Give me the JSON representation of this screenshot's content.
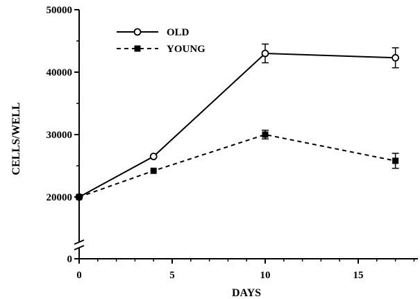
{
  "chart_data": {
    "type": "line",
    "xlabel": "DAYS",
    "ylabel": "CELLS/WELL",
    "xlim": [
      0,
      18
    ],
    "y_axis_break": true,
    "y_ticks": [
      {
        "value": 0,
        "label": "0"
      },
      {
        "value": 20000,
        "label": "20000"
      },
      {
        "value": 30000,
        "label": "30000"
      },
      {
        "value": 40000,
        "label": "40000"
      },
      {
        "value": 50000,
        "label": "50000"
      }
    ],
    "x_ticks": [
      {
        "value": 0,
        "label": "0"
      },
      {
        "value": 5,
        "label": "5"
      },
      {
        "value": 10,
        "label": "10"
      },
      {
        "value": 15,
        "label": "15"
      }
    ],
    "legend_position": "top-left",
    "series": [
      {
        "name": "OLD",
        "line_style": "solid",
        "marker": "open-circle",
        "x": [
          0,
          4,
          10,
          17
        ],
        "values": [
          20000,
          26500,
          43000,
          42300
        ],
        "errors": [
          0,
          0,
          1500,
          1600
        ]
      },
      {
        "name": "YOUNG",
        "line_style": "dashed",
        "marker": "filled-square",
        "x": [
          0,
          4,
          10,
          17
        ],
        "values": [
          20000,
          24200,
          30000,
          25800
        ],
        "errors": [
          0,
          0,
          700,
          1200
        ]
      }
    ]
  }
}
